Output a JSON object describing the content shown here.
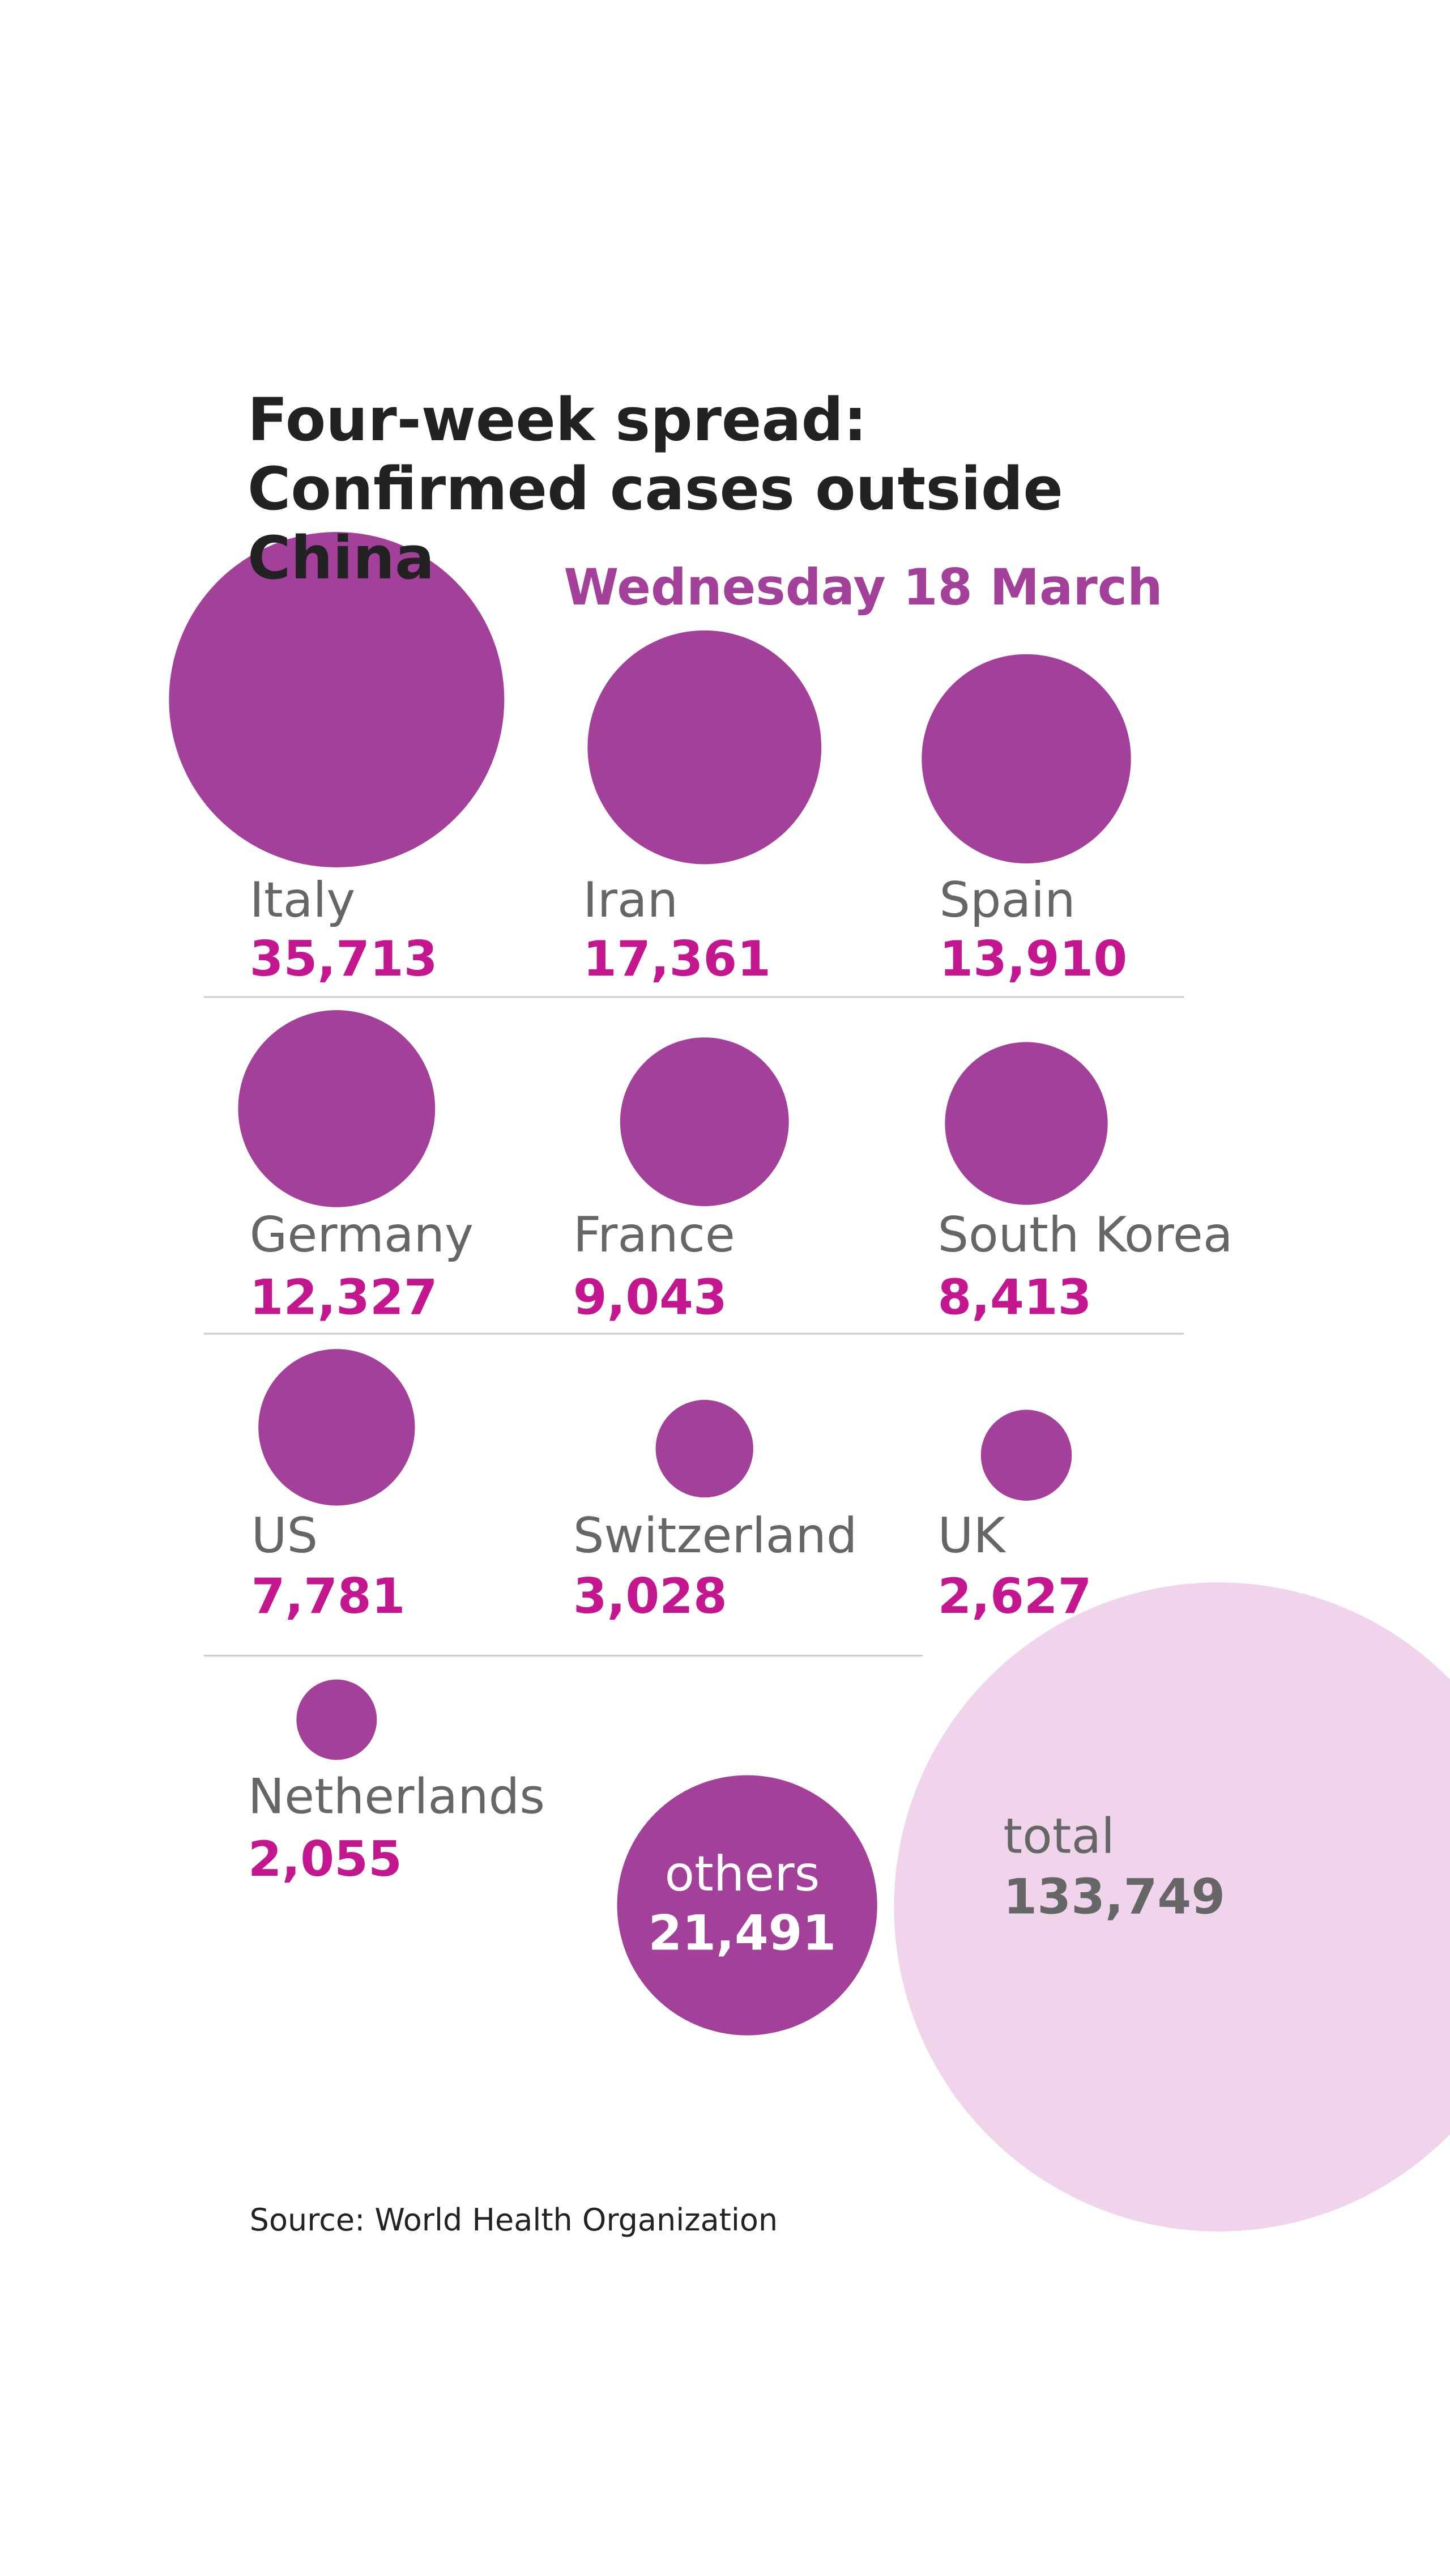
{
  "chart_data": {
    "type": "bubble",
    "title": "Four-week spread: Confirmed cases outside China",
    "subtitle": "Wednesday 18 March",
    "source": "Source: World Health Organization",
    "categories": [
      "Italy",
      "Iran",
      "Spain",
      "Germany",
      "France",
      "South Korea",
      "US",
      "Switzerland",
      "UK",
      "Netherlands",
      "others",
      "total"
    ],
    "values": [
      35713,
      17361,
      13910,
      12327,
      9043,
      8413,
      7781,
      3028,
      2627,
      2055,
      21491,
      133749
    ],
    "value_labels": [
      "35,713",
      "17,361",
      "13,910",
      "12,327",
      "9,043",
      "8,413",
      "7,781",
      "3,028",
      "2,627",
      "2,055",
      "21,491",
      "133,749"
    ],
    "colors": [
      "#a2409a",
      "#a2409a",
      "#a2409a",
      "#a2409a",
      "#a2409a",
      "#a2409a",
      "#a2409a",
      "#a2409a",
      "#a2409a",
      "#a2409a",
      "#a2409a",
      "#efd4ec"
    ]
  }
}
